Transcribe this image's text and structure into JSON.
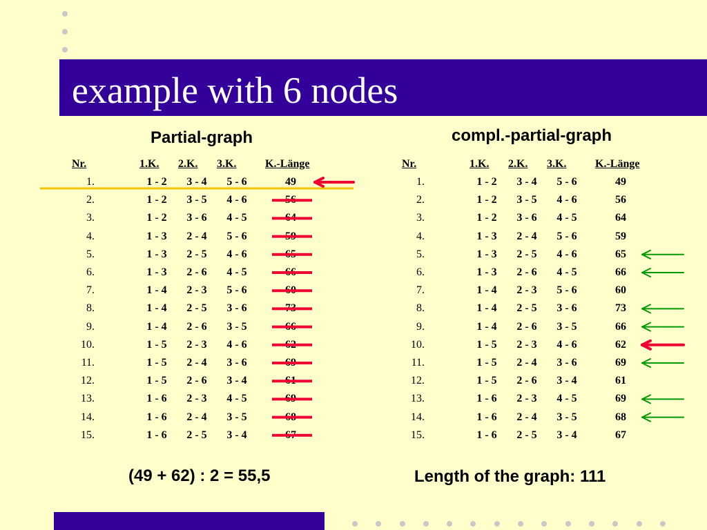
{
  "slide": {
    "title": "example with 6 nodes"
  },
  "columns": [
    "Nr.",
    "1.K.",
    "2.K.",
    "3.K.",
    "K.-Länge"
  ],
  "rows": [
    {
      "nr": "1.",
      "k1": "1 - 2",
      "k2": "3 - 4",
      "k3": "5 - 6",
      "len": "49"
    },
    {
      "nr": "2.",
      "k1": "1 - 2",
      "k2": "3 - 5",
      "k3": "4 - 6",
      "len": "56"
    },
    {
      "nr": "3.",
      "k1": "1 - 2",
      "k2": "3 - 6",
      "k3": "4 - 5",
      "len": "64"
    },
    {
      "nr": "4.",
      "k1": "1 - 3",
      "k2": "2 - 4",
      "k3": "5 - 6",
      "len": "59"
    },
    {
      "nr": "5.",
      "k1": "1 - 3",
      "k2": "2 - 5",
      "k3": "4 - 6",
      "len": "65"
    },
    {
      "nr": "6.",
      "k1": "1 - 3",
      "k2": "2 - 6",
      "k3": "4 - 5",
      "len": "66"
    },
    {
      "nr": "7.",
      "k1": "1 - 4",
      "k2": "2 - 3",
      "k3": "5 - 6",
      "len": "60"
    },
    {
      "nr": "8.",
      "k1": "1 - 4",
      "k2": "2 - 5",
      "k3": "3 - 6",
      "len": "73"
    },
    {
      "nr": "9.",
      "k1": "1 - 4",
      "k2": "2 - 6",
      "k3": "3 - 5",
      "len": "66"
    },
    {
      "nr": "10.",
      "k1": "1 - 5",
      "k2": "2 - 3",
      "k3": "4 - 6",
      "len": "62"
    },
    {
      "nr": "11.",
      "k1": "1 - 5",
      "k2": "2 - 4",
      "k3": "3 - 6",
      "len": "69"
    },
    {
      "nr": "12.",
      "k1": "1 - 5",
      "k2": "2 - 6",
      "k3": "3 - 4",
      "len": "61"
    },
    {
      "nr": "13.",
      "k1": "1 - 6",
      "k2": "2 - 3",
      "k3": "4 - 5",
      "len": "69"
    },
    {
      "nr": "14.",
      "k1": "1 - 6",
      "k2": "2 - 4",
      "k3": "3 - 5",
      "len": "68"
    },
    {
      "nr": "15.",
      "k1": "1 - 6",
      "k2": "2 - 5",
      "k3": "3 - 4",
      "len": "67"
    }
  ],
  "left": {
    "heading": "Partial-graph",
    "formula": "(49 + 62) : 2 = 55,5",
    "arrow_rows": [
      0
    ],
    "struck_rows": [
      1,
      2,
      3,
      4,
      5,
      6,
      7,
      8,
      9,
      10,
      11,
      12,
      13,
      14
    ],
    "highlight_row": 0
  },
  "right": {
    "heading": "compl.-partial-graph",
    "formula": "Length of the graph: 111",
    "green_arrow_rows": [
      4,
      5,
      7,
      8,
      10,
      12,
      13
    ],
    "red_arrow_rows": [
      9
    ]
  },
  "colors": {
    "background": "#FFFFCC",
    "title_bar": "#330099",
    "red_mark": "#EE0033",
    "green_arrow": "#009900",
    "highlight_line": "#F2C200",
    "dots": "#C8C8C8"
  }
}
